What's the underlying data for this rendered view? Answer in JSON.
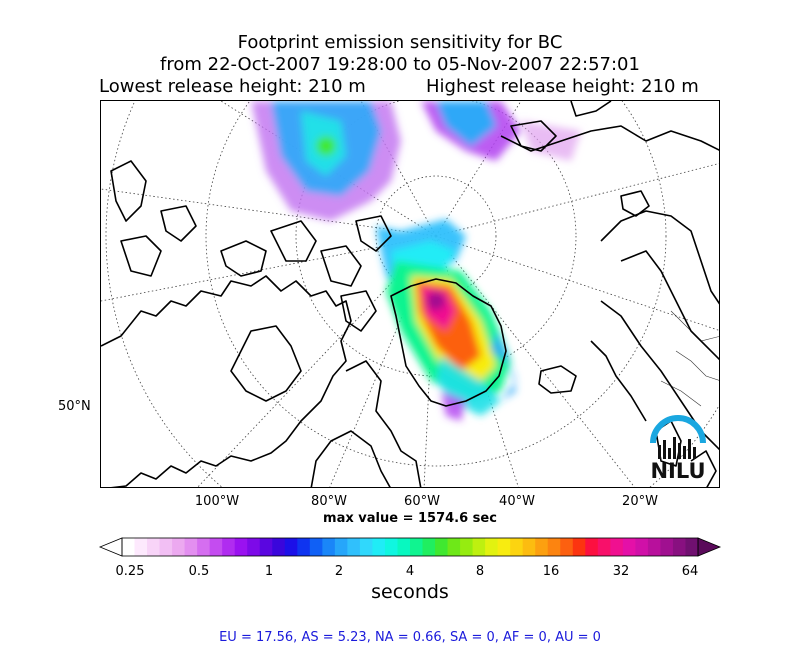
{
  "title": {
    "line1": "Footprint emission sensitivity for BC",
    "line2": "from 22-Oct-2007 19:28:00 to 05-Nov-2007 22:57:01",
    "lowest": "Lowest release height: 210 m",
    "highest": "Highest release height: 210 m"
  },
  "map": {
    "lon_labels": [
      "100°W",
      "80°W",
      "60°W",
      "40°W",
      "20°W"
    ],
    "lat_label": "50°N",
    "max_value": "max value = 1574.6 sec",
    "logo_text": "NILU",
    "logo_color": "#1aa7e0"
  },
  "colorbar": {
    "tick_labels": [
      "0.25",
      "0.5",
      "1",
      "2",
      "4",
      "8",
      "16",
      "32",
      "64"
    ],
    "units": "seconds",
    "colors": [
      "#ffffff",
      "#fde9fd",
      "#f8d4f8",
      "#f2bff4",
      "#eca9f0",
      "#e38ff0",
      "#d56ef0",
      "#c44cf0",
      "#b02cf0",
      "#9a12f0",
      "#7d0ae8",
      "#5a06e0",
      "#3a06dc",
      "#1c10e8",
      "#0f34f0",
      "#1060f5",
      "#1a86f8",
      "#26a6fa",
      "#30c0fc",
      "#30d8fc",
      "#20ecf6",
      "#10f6e0",
      "#08f8c0",
      "#10f490",
      "#20ee60",
      "#40e830",
      "#6ee818",
      "#96ec10",
      "#bef010",
      "#e2f210",
      "#f8ec10",
      "#fcd410",
      "#fcbc10",
      "#fca010",
      "#fc8410",
      "#fc6010",
      "#fc3410",
      "#fc1040",
      "#f8106a",
      "#f01090",
      "#e410a8",
      "#d010a8",
      "#b8109c",
      "#a01090",
      "#881080",
      "#701070"
    ]
  },
  "footer": "EU = 17.56,  AS = 5.23,  NA = 0.66,  SA = 0,  AF = 0,  AU = 0"
}
